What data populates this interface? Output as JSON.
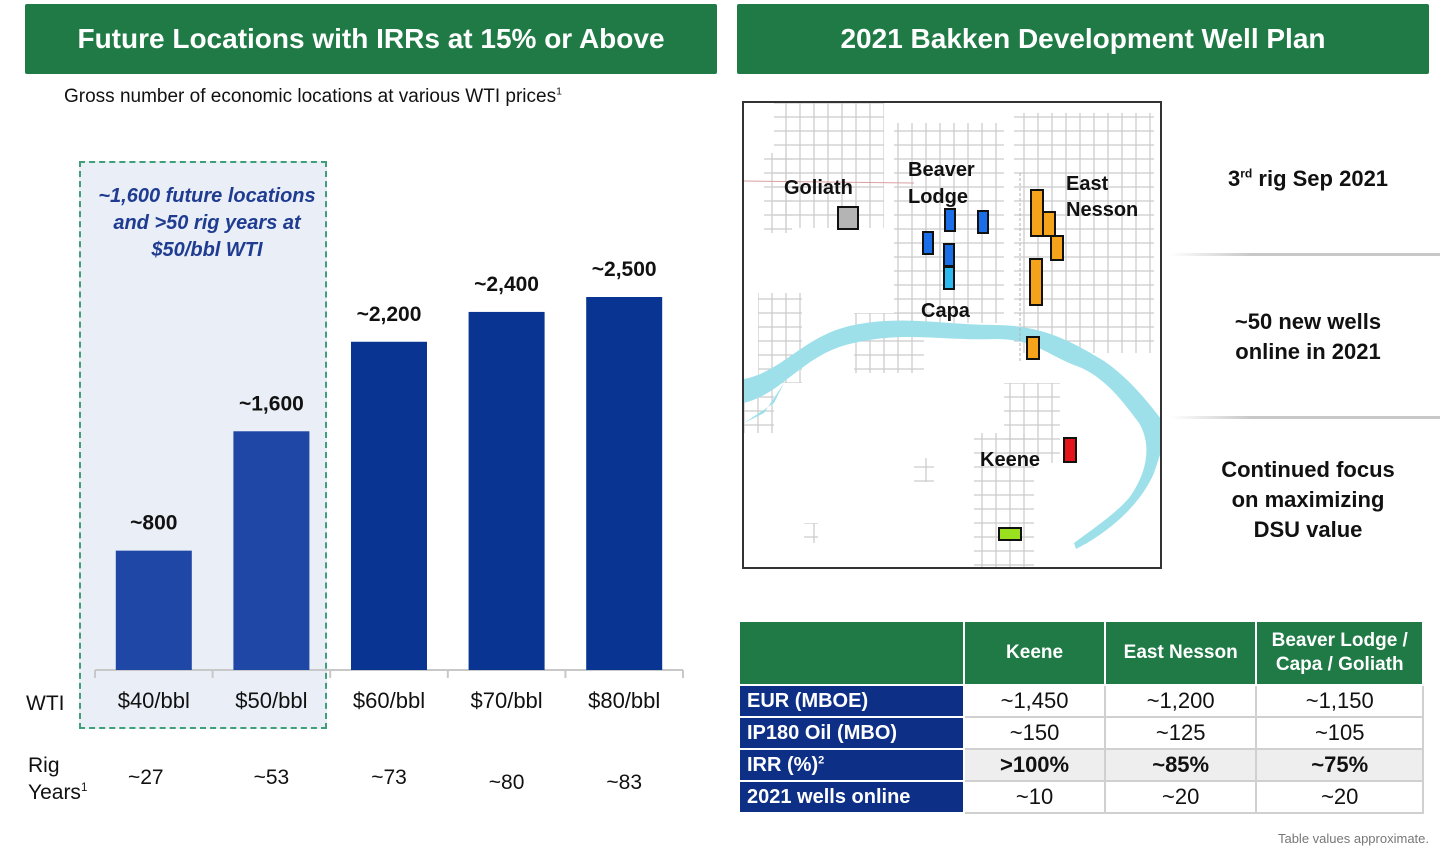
{
  "left_panel": {
    "title": "Future Locations with IRRs at 15% or Above",
    "subtitle": "Gross number of economic locations at various WTI prices",
    "subtitle_footnote": "1",
    "highlight_lines": [
      "~1,600 future locations",
      "and >50 rig years at",
      "$50/bbl WTI"
    ],
    "wti_label": "WTI",
    "rig_label_line1": "Rig",
    "rig_label_line2": "Years",
    "rig_label_footnote": "1"
  },
  "chart_data": {
    "type": "bar",
    "categories": [
      "$40/bbl",
      "$50/bbl",
      "$60/bbl",
      "$70/bbl",
      "$80/bbl"
    ],
    "values": [
      800,
      1600,
      2200,
      2400,
      2500
    ],
    "data_labels": [
      "~800",
      "~1,600",
      "~2,200",
      "~2,400",
      "~2,500"
    ],
    "rig_years": [
      "~27",
      "~53",
      "~73",
      "~80",
      "~83"
    ],
    "colors": [
      "#1f48a6",
      "#1f48a6",
      "#0a3491",
      "#0a3491",
      "#0a3491"
    ],
    "ylim": [
      0,
      2500
    ],
    "title": "",
    "xlabel": "WTI",
    "ylabel": ""
  },
  "right_panel": {
    "title": "2021 Bakken Development Well Plan",
    "map_labels": {
      "goliath": "Goliath",
      "beaver": "Beaver",
      "lodge": "Lodge",
      "east": "East",
      "nesson": "Nesson",
      "capa": "Capa",
      "keene": "Keene"
    },
    "side_notes": {
      "rig_main": "3",
      "rig_sup": "rd",
      "rig_rest": " rig Sep 2021",
      "wells_line1": "~50 new wells",
      "wells_line2": "online in 2021",
      "focus_line1": "Continued focus",
      "focus_line2": "on maximizing",
      "focus_line3": "DSU value"
    }
  },
  "table": {
    "headers": [
      "Keene",
      "East Nesson",
      "Beaver Lodge /",
      "Capa / Goliath"
    ],
    "rows": [
      {
        "label": "EUR (MBOE)",
        "sup": "",
        "values": [
          "~1,450",
          "~1,200",
          "~1,150"
        ]
      },
      {
        "label": "IP180 Oil (MBO)",
        "sup": "",
        "values": [
          "~150",
          "~125",
          "~105"
        ]
      },
      {
        "label": "IRR (%)",
        "sup": "2",
        "values": [
          ">100%",
          "~85%",
          "~75%"
        ]
      },
      {
        "label": "2021 wells online",
        "sup": "",
        "values": [
          "~10",
          "~20",
          "~20"
        ]
      }
    ],
    "note": "Table values approximate."
  },
  "colors": {
    "banner_green": "#1f7a45",
    "bar_light": "#1f48a6",
    "bar_dark": "#0a3491",
    "row_header_navy": "#0d2f86",
    "highlight_text": "#1f3c91",
    "well_orange": "#f5a31a",
    "well_blue": "#1a6ee8",
    "well_cyan": "#2cb9f0",
    "well_gray": "#b4b4b4",
    "well_red": "#e3141b",
    "well_lime": "#9be01e",
    "river": "#9ee0ea"
  }
}
